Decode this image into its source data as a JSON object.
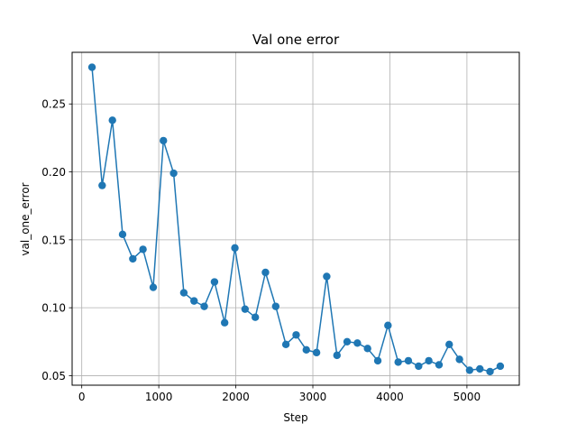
{
  "chart_data": {
    "type": "line",
    "title": "Val one error",
    "xlabel": "Step",
    "ylabel": "val_one_error",
    "xlim": [
      -125,
      5680
    ],
    "ylim": [
      0.043,
      0.288
    ],
    "xticks": [
      0,
      1000,
      2000,
      3000,
      4000,
      5000
    ],
    "xtick_labels": [
      "0",
      "1000",
      "2000",
      "3000",
      "4000",
      "5000"
    ],
    "yticks": [
      0.05,
      0.1,
      0.15,
      0.2,
      0.25
    ],
    "ytick_labels": [
      "0.05",
      "0.10",
      "0.15",
      "0.20",
      "0.25"
    ],
    "grid": true,
    "color": "#1f77b4",
    "marker": "circle",
    "series": [
      {
        "x": [
          133,
          265,
          398,
          530,
          663,
          795,
          928,
          1060,
          1193,
          1325,
          1458,
          1590,
          1723,
          1855,
          1988,
          2120,
          2253,
          2385,
          2518,
          2650,
          2783,
          2915,
          3048,
          3180,
          3313,
          3445,
          3578,
          3710,
          3843,
          3975,
          4108,
          4240,
          4373,
          4505,
          4638,
          4770,
          4903,
          5035,
          5168,
          5300,
          5433
        ],
        "y": [
          0.277,
          0.19,
          0.238,
          0.154,
          0.136,
          0.143,
          0.115,
          0.223,
          0.199,
          0.111,
          0.105,
          0.101,
          0.119,
          0.089,
          0.144,
          0.099,
          0.093,
          0.126,
          0.101,
          0.073,
          0.08,
          0.069,
          0.067,
          0.123,
          0.065,
          0.075,
          0.074,
          0.07,
          0.061,
          0.087,
          0.06,
          0.061,
          0.057,
          0.061,
          0.058,
          0.073,
          0.062,
          0.054,
          0.055,
          0.053,
          0.057
        ]
      }
    ]
  }
}
